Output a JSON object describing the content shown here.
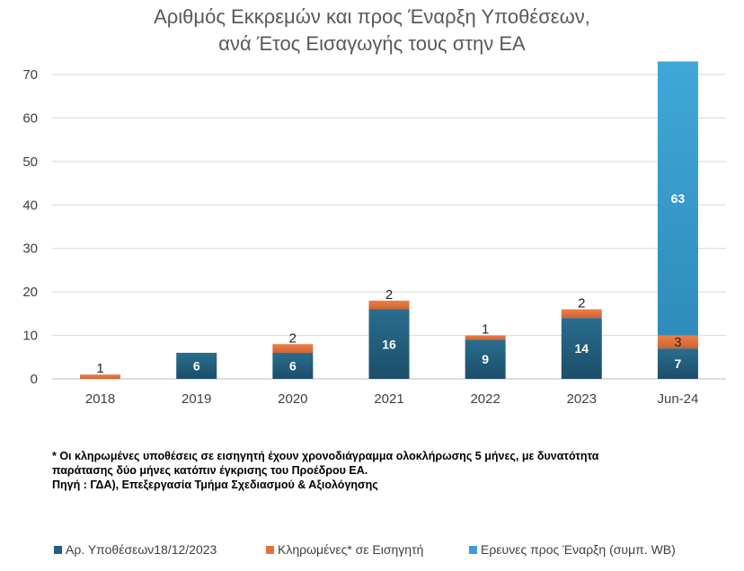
{
  "title": {
    "line1": "Αριθμός Εκκρεμών και  προς  Έναρξη Υποθέσεων,",
    "line2": "ανά Έτος Εισαγωγής τους στην ΕΑ"
  },
  "notes": {
    "line1": "* Οι κληρωμένες υποθέσεις σε εισηγητή έχουν χρονοδιάγραμμα ολοκλήρωσης 5  μήνες, με δυνατότητα",
    "line2": "παράτασης δύο μήνες κατόπιν έγκρισης του Προέδρου ΕΑ.",
    "line3": "Πηγή : ΓΔΑ), Επεξεργασία Τμήμα Σχεδιασμού & Αξιολόγησης"
  },
  "legend": [
    {
      "label": "Αρ. Υποθέσεων18/12/2023",
      "color": "#215F7E"
    },
    {
      "label": "Κληρωμένες* σε Εισηγητή",
      "color": "#E0723C"
    },
    {
      "label": "Ερευνες προς Έναρξη (συμπ. WB)",
      "color": "#3A9FCF"
    }
  ],
  "chart_data": {
    "type": "bar",
    "stacked": true,
    "categories": [
      "2018",
      "2019",
      "2020",
      "2021",
      "2022",
      "2023",
      "Jun-24"
    ],
    "series": [
      {
        "name": "Αρ. Υποθέσεων18/12/2023",
        "color": "#215F7E",
        "values": [
          0,
          6,
          6,
          16,
          9,
          14,
          7
        ]
      },
      {
        "name": "Κληρωμένες* σε Εισηγητή",
        "color": "#E0723C",
        "values": [
          1,
          0,
          2,
          2,
          1,
          2,
          3
        ]
      },
      {
        "name": "Ερευνες προς Έναρξη (συμπ. WB)",
        "color": "#3A9FCF",
        "values": [
          0,
          0,
          0,
          0,
          0,
          0,
          63
        ]
      }
    ],
    "data_labels": [
      {
        "category": "2018",
        "series": 1,
        "text": "1"
      },
      {
        "category": "2019",
        "series": 0,
        "text": "6"
      },
      {
        "category": "2020",
        "series": 0,
        "text": "6"
      },
      {
        "category": "2020",
        "series": 1,
        "text": "2"
      },
      {
        "category": "2021",
        "series": 0,
        "text": "16"
      },
      {
        "category": "2021",
        "series": 1,
        "text": "2"
      },
      {
        "category": "2022",
        "series": 0,
        "text": "9"
      },
      {
        "category": "2022",
        "series": 1,
        "text": "1"
      },
      {
        "category": "2023",
        "series": 0,
        "text": "14"
      },
      {
        "category": "2023",
        "series": 1,
        "text": "2"
      },
      {
        "category": "Jun-24",
        "series": 0,
        "text": "7"
      },
      {
        "category": "Jun-24",
        "series": 1,
        "text": "3"
      },
      {
        "category": "Jun-24",
        "series": 2,
        "text": "63"
      }
    ],
    "title": "Αριθμός Εκκρεμών και  προς  Έναρξη Υποθέσεων, ανά Έτος Εισαγωγής τους στην ΕΑ",
    "xlabel": "",
    "ylabel": "",
    "ylim": [
      0,
      70
    ],
    "yticks": [
      0,
      10,
      20,
      30,
      40,
      50,
      60,
      70
    ],
    "grid": true,
    "legend_position": "bottom"
  }
}
